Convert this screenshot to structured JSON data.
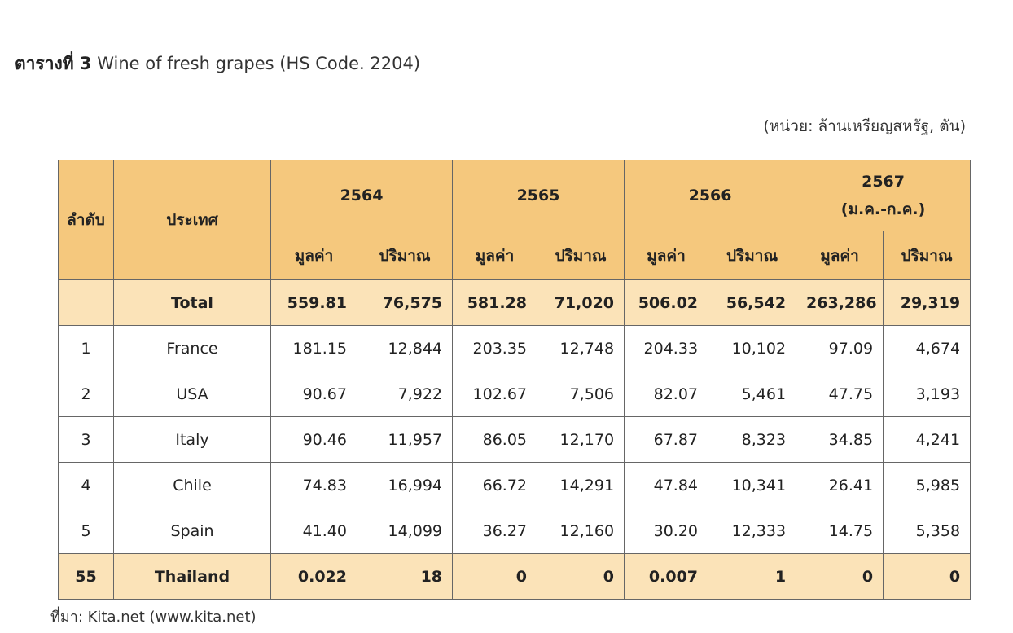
{
  "title": {
    "bold": "ตารางที่ 3",
    "rest": " Wine of fresh grapes (HS Code. 2204)"
  },
  "unit_note": "(หน่วย: ล้านเหรียญสหรัฐ, ตัน)",
  "table": {
    "col_rank": "ลำดับ",
    "col_country": "ประเทศ",
    "years": [
      {
        "label": "2564",
        "sub": ""
      },
      {
        "label": "2565",
        "sub": ""
      },
      {
        "label": "2566",
        "sub": ""
      },
      {
        "label": "2567",
        "sub": "(ม.ค.-ก.ค.)"
      }
    ],
    "value_label": "มูลค่า",
    "qty_label": "ปริมาณ",
    "rows": [
      {
        "rank": "",
        "country": "Total",
        "v": [
          "559.81",
          "76,575",
          "581.28",
          "71,020",
          "506.02",
          "56,542",
          "263,286",
          "29,319"
        ]
      },
      {
        "rank": "1",
        "country": "France",
        "v": [
          "181.15",
          "12,844",
          "203.35",
          "12,748",
          "204.33",
          "10,102",
          "97.09",
          "4,674"
        ]
      },
      {
        "rank": "2",
        "country": "USA",
        "v": [
          "90.67",
          "7,922",
          "102.67",
          "7,506",
          "82.07",
          "5,461",
          "47.75",
          "3,193"
        ]
      },
      {
        "rank": "3",
        "country": "Italy",
        "v": [
          "90.46",
          "11,957",
          "86.05",
          "12,170",
          "67.87",
          "8,323",
          "34.85",
          "4,241"
        ]
      },
      {
        "rank": "4",
        "country": "Chile",
        "v": [
          "74.83",
          "16,994",
          "66.72",
          "14,291",
          "47.84",
          "10,341",
          "26.41",
          "5,985"
        ]
      },
      {
        "rank": "5",
        "country": "Spain",
        "v": [
          "41.40",
          "14,099",
          "36.27",
          "12,160",
          "30.20",
          "12,333",
          "14.75",
          "5,358"
        ]
      },
      {
        "rank": "55",
        "country": "Thailand",
        "v": [
          "0.022",
          "18",
          "0",
          "0",
          "0.007",
          "1",
          "0",
          "0"
        ]
      }
    ]
  },
  "source": "ที่มา: Kita.net (www.kita.net)",
  "colors": {
    "header_bg": "#f5c87d",
    "highlight_row_bg": "#fbe3b8",
    "border": "#666666"
  }
}
